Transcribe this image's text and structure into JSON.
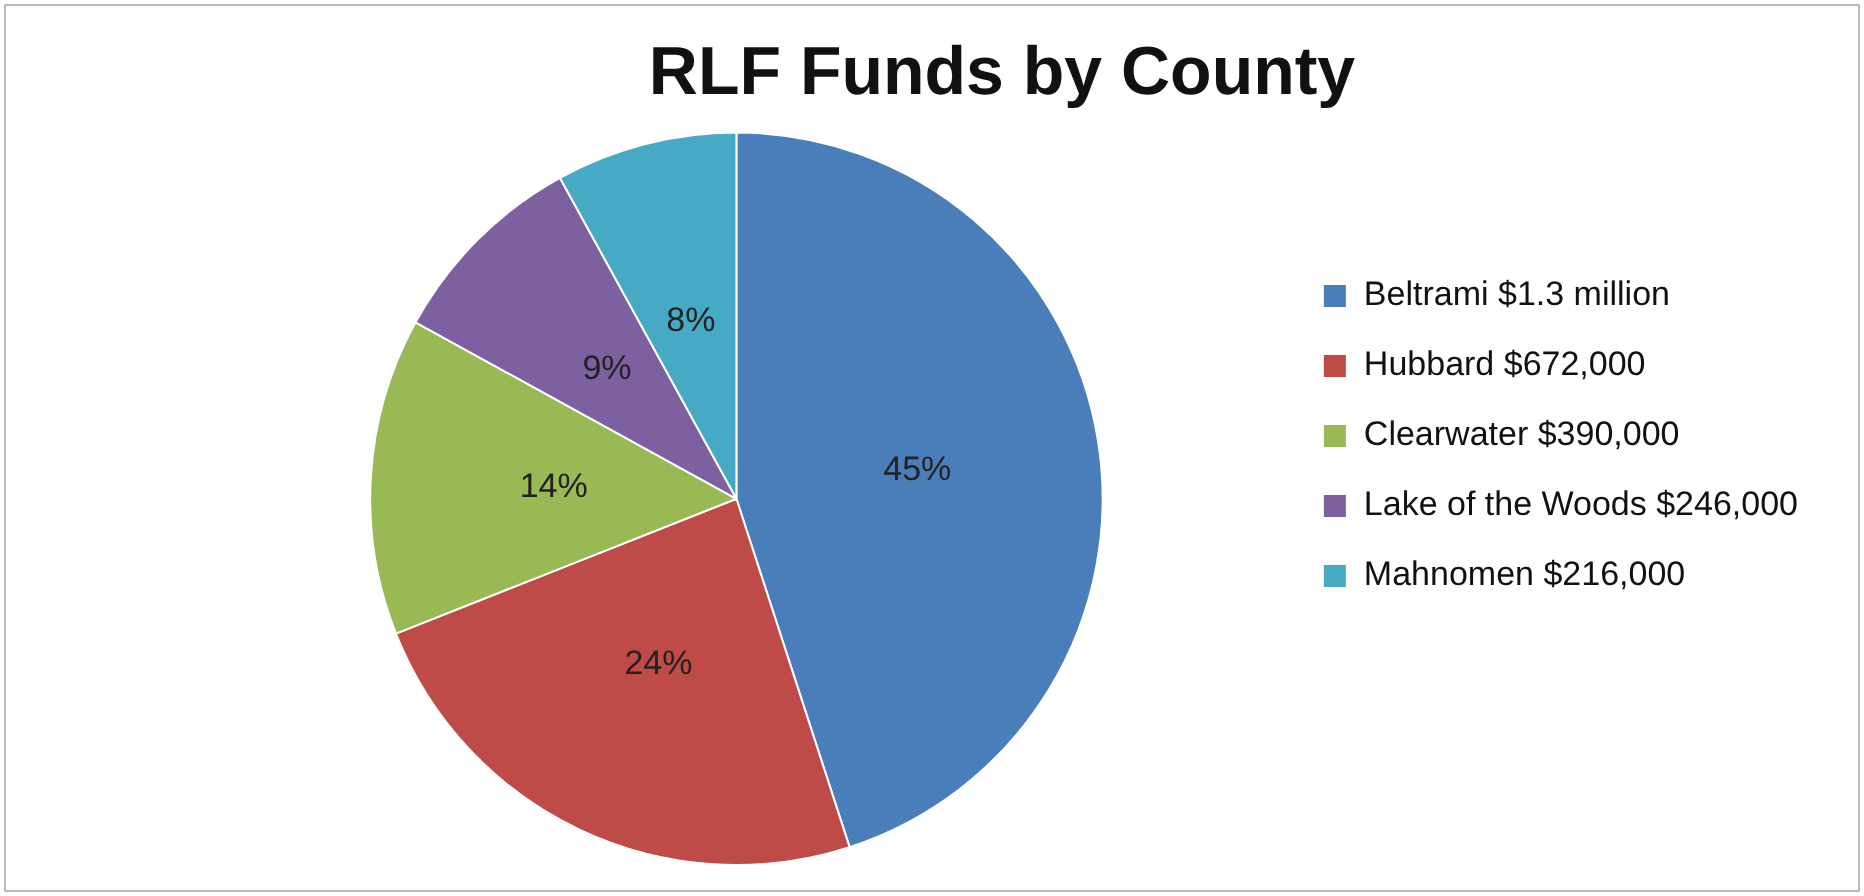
{
  "chart_data": {
    "type": "pie",
    "title": "RLF Funds by County",
    "categories": [
      "Beltrami $1.3 million",
      "Hubbard $672,000",
      "Clearwater $390,000",
      "Lake of the Woods $246,000",
      "Mahnomen $216,000"
    ],
    "values": [
      45,
      24,
      14,
      9,
      8
    ],
    "colors": [
      "#4a7ebb",
      "#be4b48",
      "#98b954",
      "#7d60a0",
      "#46aac5"
    ],
    "value_labels": [
      "45%",
      "24%",
      "14%",
      "9%",
      "8%"
    ],
    "legend": "right"
  }
}
